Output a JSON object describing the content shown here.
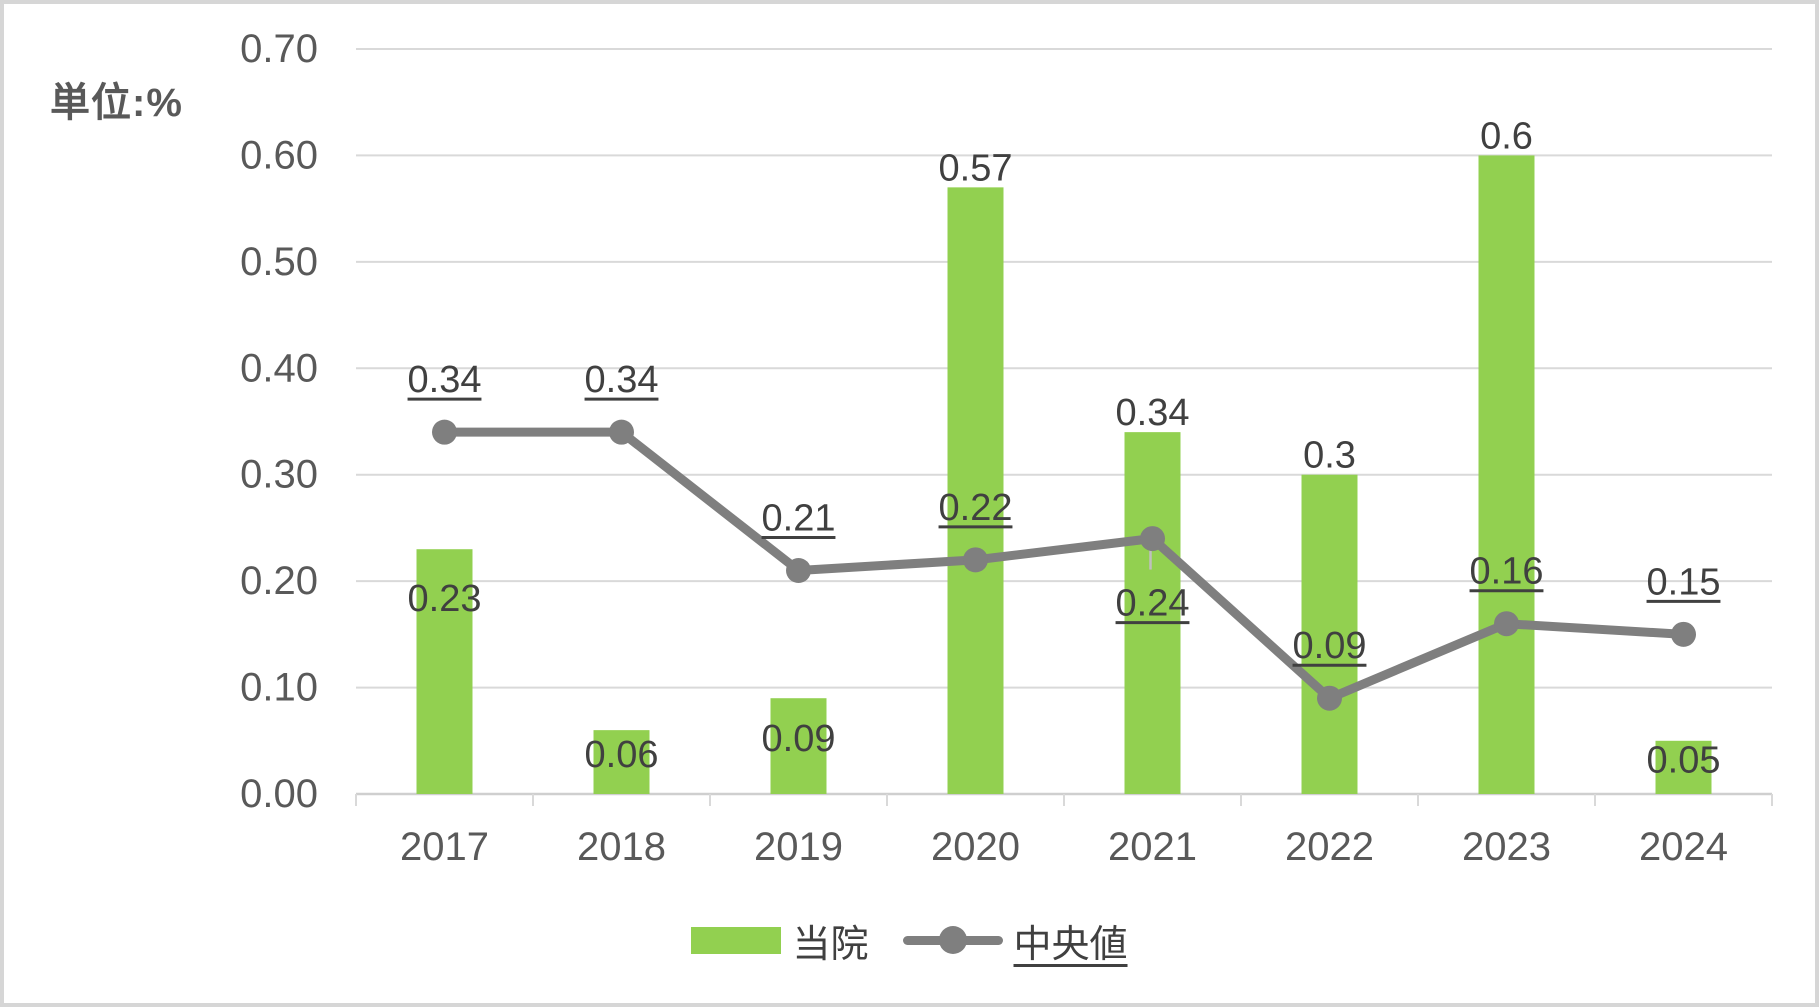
{
  "chart_data": {
    "type": "bar",
    "combo": "bar+line",
    "title": "",
    "unit_label": "単位:%",
    "categories": [
      "2017",
      "2018",
      "2019",
      "2020",
      "2021",
      "2022",
      "2023",
      "2024"
    ],
    "series": [
      {
        "name": "当院",
        "type": "bar",
        "color": "#92D050",
        "values": [
          0.23,
          0.06,
          0.09,
          0.57,
          0.34,
          0.3,
          0.6,
          0.05
        ],
        "data_labels": [
          "0.23",
          "0.06",
          "0.09",
          "0.57",
          "0.34",
          "0.3",
          "0.6",
          "0.05"
        ],
        "label_positions": [
          "inside-top",
          "middle",
          "middle",
          "above",
          "above",
          "above",
          "above",
          "middle"
        ],
        "labels_underlined": false
      },
      {
        "name": "中央値",
        "type": "line",
        "color": "#7F7F7F",
        "marker": "circle",
        "values": [
          0.34,
          0.34,
          0.21,
          0.22,
          0.24,
          0.09,
          0.16,
          0.15
        ],
        "data_labels": [
          "0.34",
          "0.34",
          "0.21",
          "0.22",
          "0.24",
          "0.09",
          "0.16",
          "0.15"
        ],
        "label_positions": [
          "above",
          "above",
          "above",
          "above",
          "below-leader",
          "above",
          "above",
          "above"
        ],
        "labels_underlined": true
      }
    ],
    "y_axis": {
      "min": 0,
      "max": 0.7,
      "step": 0.1,
      "ticks": [
        "0.00",
        "0.10",
        "0.20",
        "0.30",
        "0.40",
        "0.50",
        "0.60",
        "0.70"
      ]
    },
    "x_axis": {
      "ticks_between_categories": true
    },
    "grid": "horizontal",
    "legend": {
      "position": "bottom",
      "entries": [
        "当院",
        "中央値"
      ]
    },
    "colors": {
      "bar": "#92D050",
      "line": "#7F7F7F",
      "gridline": "#D9D9D9",
      "axis_line": "#CFCFCF",
      "axis_text": "#595959",
      "label_text": "#404040",
      "leader_line": "#BFBFBF",
      "frame_border": "#D6D6D6",
      "background": "#FFFFFF"
    }
  }
}
